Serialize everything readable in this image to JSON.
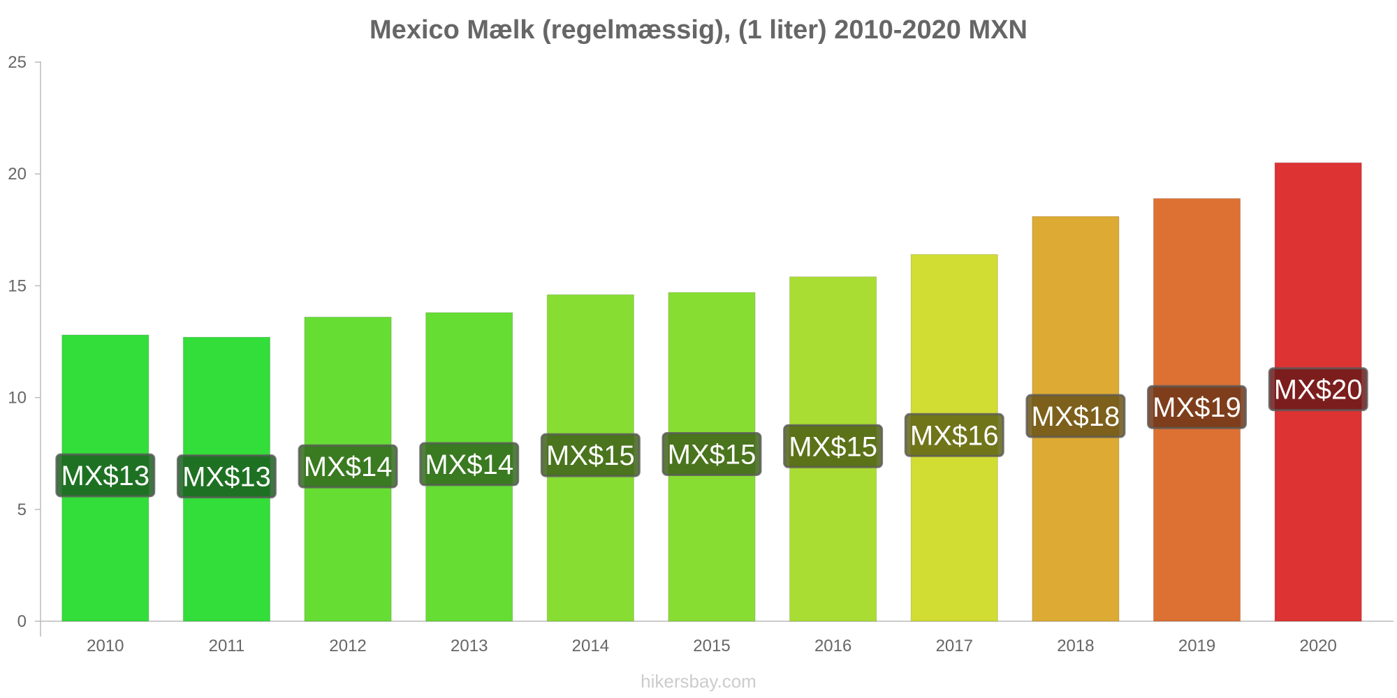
{
  "chart_data": {
    "type": "bar",
    "title": "Mexico Mælk (regelmæssig), (1 liter) 2010-2020 MXN",
    "xlabel": "",
    "ylabel": "",
    "ylim": [
      0,
      25
    ],
    "yticks": [
      "0",
      "5",
      "10",
      "15",
      "20",
      "25"
    ],
    "categories": [
      "2010",
      "2011",
      "2012",
      "2013",
      "2014",
      "2015",
      "2016",
      "2017",
      "2018",
      "2019",
      "2020"
    ],
    "values": [
      12.8,
      12.7,
      13.6,
      13.8,
      14.6,
      14.7,
      15.4,
      16.4,
      18.1,
      18.9,
      20.5
    ],
    "labels": [
      "MX$13",
      "MX$13",
      "MX$14",
      "MX$14",
      "MX$15",
      "MX$15",
      "MX$15",
      "MX$16",
      "MX$18",
      "MX$19",
      "MX$20"
    ],
    "colors": [
      "#33dd3a",
      "#33dd3a",
      "#66dd33",
      "#66dd33",
      "#88dd33",
      "#88dd33",
      "#aadd33",
      "#d1dd33",
      "#ddaa33",
      "#dd7033",
      "#dd3333"
    ],
    "label_bg": [
      "#1b5e20",
      "#1b5e20",
      "#33691e",
      "#33691e",
      "#3f611a",
      "#3f611a",
      "#4e5f14",
      "#5f6316",
      "#6b5318",
      "#6d3518",
      "#6b1a1a"
    ],
    "grid": false,
    "legend": "none"
  },
  "credit": "hikersbay.com"
}
